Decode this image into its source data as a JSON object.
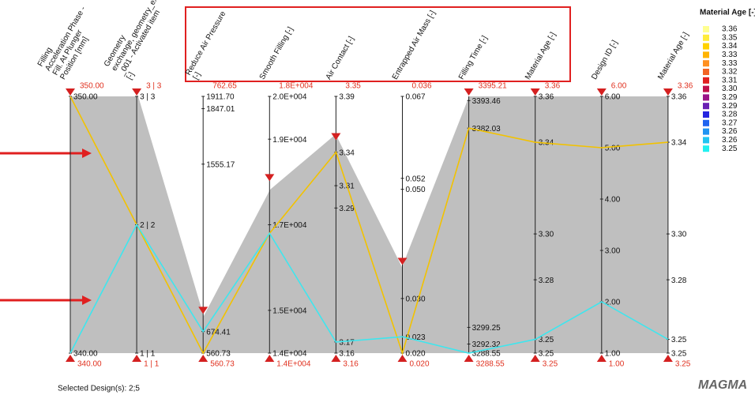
{
  "chart_data": {
    "type": "parallel",
    "axes": [
      {
        "label": [
          "Filling",
          "Acceleration Phase -",
          "Fill. At Plunger",
          "Position [mm]"
        ],
        "ylim": [
          340,
          350
        ],
        "yticks": [
          {
            "value": 350,
            "label": "350.00"
          },
          {
            "value": 340,
            "label": "340.00"
          }
        ],
        "filter": [
          {
            "value": 340,
            "label": "340.00"
          },
          {
            "value": 350,
            "label": "350.00"
          }
        ]
      },
      {
        "label": [
          "Geometry",
          "exchange, geometry_exchange",
          "_001 - Activated item",
          "[-]"
        ],
        "ylim": [
          1,
          3
        ],
        "yticks": [
          {
            "value": 3,
            "label": "3 | 3"
          },
          {
            "value": 2,
            "label": "2 | 2"
          },
          {
            "value": 1,
            "label": "1 | 1"
          }
        ],
        "filter": [
          {
            "value": 1,
            "label": "1 | 1"
          },
          {
            "value": 3,
            "label": "3 | 3"
          }
        ]
      },
      {
        "label": [
          "Reduce Air Pressure",
          "[-]"
        ],
        "ylim": [
          560.73,
          1911.7
        ],
        "yticks": [
          {
            "value": 1911.7,
            "label": "1911.70"
          },
          1847.01,
          1555.17,
          674.41,
          560.73
        ],
        "filter": [
          560.73,
          762.65
        ]
      },
      {
        "label": [
          "Smooth Filling [-]"
        ],
        "ylim": [
          14000,
          20000
        ],
        "yticks": [
          {
            "value": 20000,
            "label": "2.0E+004"
          },
          {
            "value": 19000,
            "label": "1.9E+004"
          },
          {
            "value": 17000,
            "label": "1.7E+004"
          },
          {
            "value": 15000,
            "label": "1.5E+004"
          },
          {
            "value": 14000,
            "label": "1.4E+004"
          }
        ],
        "filter": [
          {
            "value": 14000,
            "label": "1.4E+004"
          },
          {
            "value": 18000,
            "label": "1.8E+004"
          }
        ]
      },
      {
        "label": [
          "Air Contact [-]"
        ],
        "ylim": [
          3.16,
          3.39
        ],
        "yticks": [
          3.39,
          3.34,
          3.31,
          3.29,
          3.17,
          3.16
        ],
        "filter": [
          3.16,
          3.35
        ]
      },
      {
        "label": [
          "Entrapped Air Mass [-]"
        ],
        "ylim": [
          0.02,
          0.067
        ],
        "yticks": [
          0.067,
          0.052,
          {
            "value": 0.05,
            "label": "0.050"
          },
          {
            "value": 0.03,
            "label": "0.030"
          },
          0.023,
          {
            "value": 0.02,
            "label": "0.020"
          }
        ],
        "filter": [
          {
            "value": 0.02,
            "label": "0.020"
          },
          0.036
        ]
      },
      {
        "label": [
          "Filling Time [-]"
        ],
        "ylim": [
          3288.55,
          3395.21
        ],
        "yticks": [
          3393.46,
          3382.03,
          3299.25,
          3292.32,
          3288.55
        ],
        "filter": [
          3288.55,
          3395.21
        ]
      },
      {
        "label": [
          "Material Age [-]"
        ],
        "ylim": [
          3.248,
          3.36
        ],
        "yticks": [
          3.36,
          3.34,
          {
            "value": 3.3,
            "label": "3.30"
          },
          3.28,
          {
            "value": 3.254,
            "label": "3.25"
          },
          {
            "value": 3.248,
            "label": "3.25"
          }
        ],
        "filter": [
          {
            "value": 3.248,
            "label": "3.25"
          },
          3.36
        ]
      },
      {
        "label": [
          "Design ID [-]"
        ],
        "ylim": [
          1,
          6
        ],
        "yticks": [
          {
            "value": 6,
            "label": "6.00"
          },
          {
            "value": 5,
            "label": "5.00"
          },
          {
            "value": 4,
            "label": "4.00"
          },
          {
            "value": 3,
            "label": "3.00"
          },
          {
            "value": 2,
            "label": "2.00"
          },
          {
            "value": 1,
            "label": "1.00"
          }
        ],
        "filter": [
          {
            "value": 1,
            "label": "1.00"
          },
          {
            "value": 6,
            "label": "6.00"
          }
        ]
      },
      {
        "label": [
          "Material Age [-]"
        ],
        "ylim": [
          3.248,
          3.36
        ],
        "yticks": [
          3.36,
          3.34,
          {
            "value": 3.3,
            "label": "3.30"
          },
          3.28,
          {
            "value": 3.254,
            "label": "3.25"
          },
          {
            "value": 3.248,
            "label": "3.25"
          }
        ],
        "filter": [
          {
            "value": 3.248,
            "label": "3.25"
          },
          3.36
        ]
      }
    ],
    "series": [
      {
        "color": "#f2c200",
        "values": [
          350,
          2,
          560.73,
          16800,
          3.34,
          0.02,
          3382.03,
          3.34,
          5,
          3.34
        ]
      },
      {
        "color": "#3ee6ee",
        "values": [
          340,
          2,
          674.41,
          16800,
          3.17,
          0.023,
          3288.55,
          3.254,
          2,
          3.254
        ]
      }
    ],
    "legend": {
      "title": "Material Age [-]",
      "items": [
        {
          "value": 3.36,
          "label": "3.36",
          "color": "#ffff90"
        },
        {
          "value": 3.35,
          "label": "3.35",
          "color": "#ffec3a"
        },
        {
          "value": 3.34,
          "label": "3.34",
          "color": "#ffd200"
        },
        {
          "value": 3.33,
          "label": "3.33",
          "color": "#ffb400"
        },
        {
          "value": 3.33,
          "label": "3.33",
          "color": "#ff9020"
        },
        {
          "value": 3.32,
          "label": "3.32",
          "color": "#f26424"
        },
        {
          "value": 3.31,
          "label": "3.31",
          "color": "#e02020"
        },
        {
          "value": 3.3,
          "label": "3.30",
          "color": "#c0104a"
        },
        {
          "value": 3.29,
          "label": "3.29",
          "color": "#9a1488"
        },
        {
          "value": 3.29,
          "label": "3.29",
          "color": "#6a20b4"
        },
        {
          "value": 3.28,
          "label": "3.28",
          "color": "#2424e0"
        },
        {
          "value": 3.27,
          "label": "3.27",
          "color": "#2064f0"
        },
        {
          "value": 3.26,
          "label": "3.26",
          "color": "#2094f2"
        },
        {
          "value": 3.26,
          "label": "3.26",
          "color": "#22c4f2"
        },
        {
          "value": 3.25,
          "label": "3.25",
          "color": "#22f0f0"
        }
      ]
    }
  },
  "footer": {
    "selection": "Selected Design(s): 2;5",
    "logo": "MAGMA"
  }
}
